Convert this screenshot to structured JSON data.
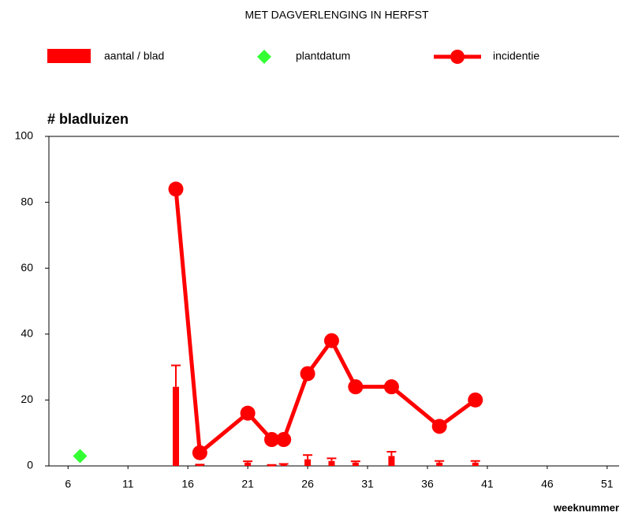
{
  "chart_data": {
    "type": "combo",
    "title": "MET DAGVERLENGING IN HERFST",
    "y_label": "# bladluizen",
    "x_label": "weeknummer",
    "xlim": [
      4.4,
      52
    ],
    "xticks": [
      6,
      11,
      16,
      21,
      26,
      31,
      36,
      41,
      46,
      51
    ],
    "ylim": [
      0,
      100
    ],
    "yticks": [
      0,
      20,
      40,
      60,
      80,
      100
    ],
    "series": [
      {
        "name": "aantal / blad",
        "kind": "bar",
        "color": "#ff0000",
        "x": [
          15,
          17,
          21,
          23,
          24,
          26,
          28,
          30,
          33,
          37,
          40
        ],
        "values": [
          24,
          0.3,
          1,
          0.2,
          0.4,
          2,
          1.5,
          1,
          3,
          1,
          1
        ],
        "errors": [
          6.5,
          0.1,
          0.4,
          0.1,
          0.2,
          1.3,
          0.8,
          0.4,
          1.3,
          0.5,
          0.5
        ]
      },
      {
        "name": "plantdatum",
        "kind": "scatter",
        "color": "#33ff33",
        "x": [
          7
        ],
        "values": [
          3
        ]
      },
      {
        "name": "incidentie",
        "kind": "line",
        "color": "#ff0000",
        "x": [
          15,
          17,
          21,
          23,
          24,
          26,
          28,
          30,
          33,
          37,
          40
        ],
        "values": [
          84,
          4,
          16,
          8,
          8,
          28,
          38,
          24,
          24,
          12,
          20
        ]
      }
    ]
  }
}
